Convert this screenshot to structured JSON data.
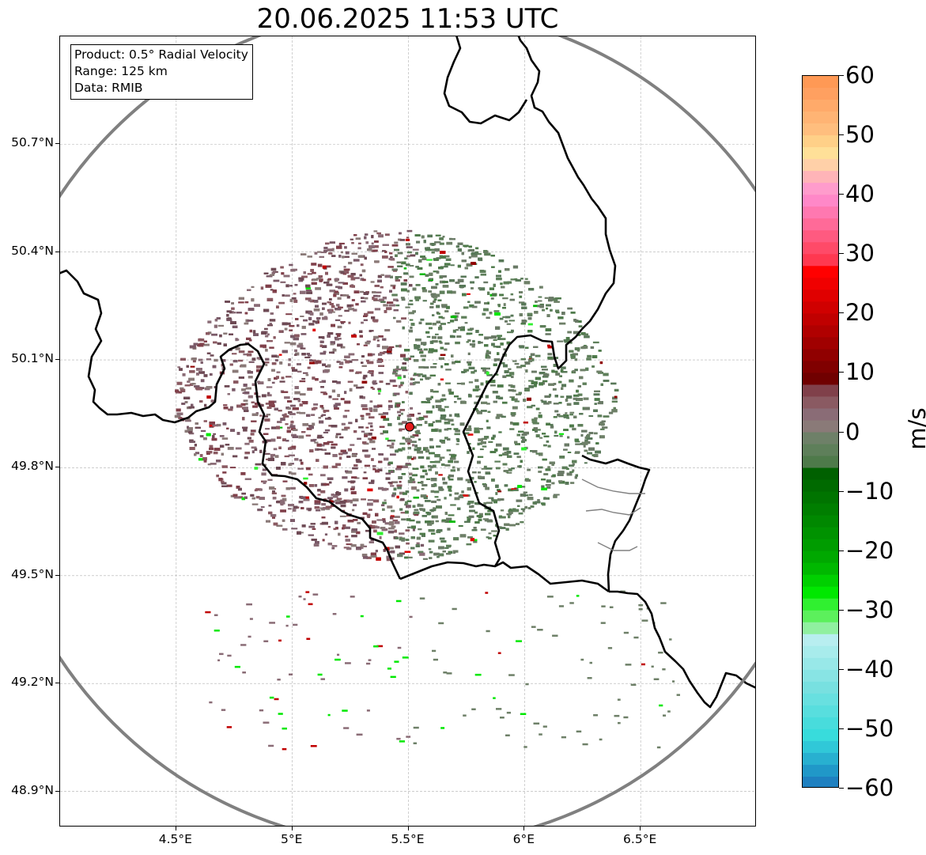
{
  "title": "20.06.2025 11:53 UTC",
  "info_box": {
    "product": "Product: 0.5° Radial Velocity",
    "range": "Range: 125 km",
    "source": "Data: RMIB"
  },
  "map": {
    "lon_range": [
      4.0,
      7.0
    ],
    "lat_range": [
      48.8,
      51.0
    ],
    "radar_site": {
      "lon": 5.505,
      "lat": 49.914
    },
    "x_ticks": [
      {
        "lon": 4.5,
        "label": "4.5°E"
      },
      {
        "lon": 5.0,
        "label": "5°E"
      },
      {
        "lon": 5.5,
        "label": "5.5°E"
      },
      {
        "lon": 6.0,
        "label": "6°E"
      },
      {
        "lon": 6.5,
        "label": "6.5°E"
      }
    ],
    "y_ticks": [
      {
        "lat": 48.9,
        "label": "48.9°N"
      },
      {
        "lat": 49.2,
        "label": "49.2°N"
      },
      {
        "lat": 49.5,
        "label": "49.5°N"
      },
      {
        "lat": 49.8,
        "label": "49.8°N"
      },
      {
        "lat": 50.1,
        "label": "50.1°N"
      },
      {
        "lat": 50.4,
        "label": "50.4°N"
      },
      {
        "lat": 50.7,
        "label": "50.7°N"
      }
    ],
    "grid": true,
    "colors": {
      "range_ring": "#808080",
      "borders": "#000000",
      "province_borders": "#808080",
      "radar_marker": "#e31a1c",
      "inbound_near_zero": "#5e7f5a",
      "outbound_near_zero": "#8a5f6a"
    }
  },
  "colorbar": {
    "unit": "m/s",
    "min": -60,
    "max": 60,
    "ticks": [
      {
        "value": 60,
        "label": "60"
      },
      {
        "value": 50,
        "label": "50"
      },
      {
        "value": 40,
        "label": "40"
      },
      {
        "value": 30,
        "label": "30"
      },
      {
        "value": 20,
        "label": "20"
      },
      {
        "value": 10,
        "label": "10"
      },
      {
        "value": 0,
        "label": "0"
      },
      {
        "value": -10,
        "label": "−10"
      },
      {
        "value": -20,
        "label": "−20"
      },
      {
        "value": -30,
        "label": "−30"
      },
      {
        "value": -40,
        "label": "−40"
      },
      {
        "value": -50,
        "label": "−50"
      },
      {
        "value": -60,
        "label": "−60"
      }
    ],
    "bands": [
      {
        "from": 58,
        "to": 60,
        "color": "#ff9955"
      },
      {
        "from": 56,
        "to": 58,
        "color": "#ffa060"
      },
      {
        "from": 54,
        "to": 56,
        "color": "#ffaa6a"
      },
      {
        "from": 52,
        "to": 54,
        "color": "#ffb474"
      },
      {
        "from": 50,
        "to": 52,
        "color": "#ffbe7e"
      },
      {
        "from": 48,
        "to": 50,
        "color": "#ffd088"
      },
      {
        "from": 46,
        "to": 48,
        "color": "#ffe098"
      },
      {
        "from": 44,
        "to": 46,
        "color": "#ffd0a8"
      },
      {
        "from": 42,
        "to": 44,
        "color": "#ffb4b8"
      },
      {
        "from": 40,
        "to": 42,
        "color": "#ff9ccc"
      },
      {
        "from": 38,
        "to": 40,
        "color": "#ff88c8"
      },
      {
        "from": 36,
        "to": 38,
        "color": "#ff78b0"
      },
      {
        "from": 34,
        "to": 36,
        "color": "#ff6a98"
      },
      {
        "from": 32,
        "to": 34,
        "color": "#ff5a80"
      },
      {
        "from": 30,
        "to": 32,
        "color": "#ff4a68"
      },
      {
        "from": 28,
        "to": 30,
        "color": "#ff3850"
      },
      {
        "from": 26,
        "to": 28,
        "color": "#ff0000"
      },
      {
        "from": 24,
        "to": 26,
        "color": "#f00000"
      },
      {
        "from": 22,
        "to": 24,
        "color": "#e00000"
      },
      {
        "from": 20,
        "to": 22,
        "color": "#d00000"
      },
      {
        "from": 18,
        "to": 20,
        "color": "#c00000"
      },
      {
        "from": 16,
        "to": 18,
        "color": "#b00000"
      },
      {
        "from": 14,
        "to": 16,
        "color": "#a00000"
      },
      {
        "from": 12,
        "to": 14,
        "color": "#900000"
      },
      {
        "from": 10,
        "to": 12,
        "color": "#800000"
      },
      {
        "from": 8,
        "to": 10,
        "color": "#700000"
      },
      {
        "from": 6,
        "to": 8,
        "color": "#80404a"
      },
      {
        "from": 4,
        "to": 6,
        "color": "#8a5a62"
      },
      {
        "from": 2,
        "to": 4,
        "color": "#8a6c76"
      },
      {
        "from": 0,
        "to": 2,
        "color": "#8a7a78"
      },
      {
        "from": -2,
        "to": 0,
        "color": "#6e8068"
      },
      {
        "from": -4,
        "to": -2,
        "color": "#5e7f5a"
      },
      {
        "from": -6,
        "to": -4,
        "color": "#4e7a4a"
      },
      {
        "from": -8,
        "to": -6,
        "color": "#006000"
      },
      {
        "from": -10,
        "to": -8,
        "color": "#006a00"
      },
      {
        "from": -12,
        "to": -10,
        "color": "#007400"
      },
      {
        "from": -14,
        "to": -12,
        "color": "#007e00"
      },
      {
        "from": -16,
        "to": -14,
        "color": "#008800"
      },
      {
        "from": -18,
        "to": -16,
        "color": "#009200"
      },
      {
        "from": -20,
        "to": -18,
        "color": "#009c00"
      },
      {
        "from": -22,
        "to": -20,
        "color": "#00a800"
      },
      {
        "from": -24,
        "to": -22,
        "color": "#00b800"
      },
      {
        "from": -26,
        "to": -24,
        "color": "#00d000"
      },
      {
        "from": -28,
        "to": -26,
        "color": "#00e800"
      },
      {
        "from": -30,
        "to": -28,
        "color": "#30f030"
      },
      {
        "from": -32,
        "to": -30,
        "color": "#5cf05c"
      },
      {
        "from": -34,
        "to": -32,
        "color": "#90f0a0"
      },
      {
        "from": -36,
        "to": -34,
        "color": "#b8eef0"
      },
      {
        "from": -38,
        "to": -36,
        "color": "#a8ecec"
      },
      {
        "from": -40,
        "to": -38,
        "color": "#98e8e8"
      },
      {
        "from": -42,
        "to": -40,
        "color": "#88e4e4"
      },
      {
        "from": -44,
        "to": -42,
        "color": "#78e0e0"
      },
      {
        "from": -46,
        "to": -44,
        "color": "#68e0e0"
      },
      {
        "from": -48,
        "to": -46,
        "color": "#58dede"
      },
      {
        "from": -50,
        "to": -48,
        "color": "#48dcdc"
      },
      {
        "from": -52,
        "to": -50,
        "color": "#38dcdc"
      },
      {
        "from": -54,
        "to": -52,
        "color": "#30c8d8"
      },
      {
        "from": -56,
        "to": -54,
        "color": "#28b0d0"
      },
      {
        "from": -58,
        "to": -56,
        "color": "#2098c8"
      },
      {
        "from": -60,
        "to": -58,
        "color": "#1e80c0"
      }
    ]
  }
}
